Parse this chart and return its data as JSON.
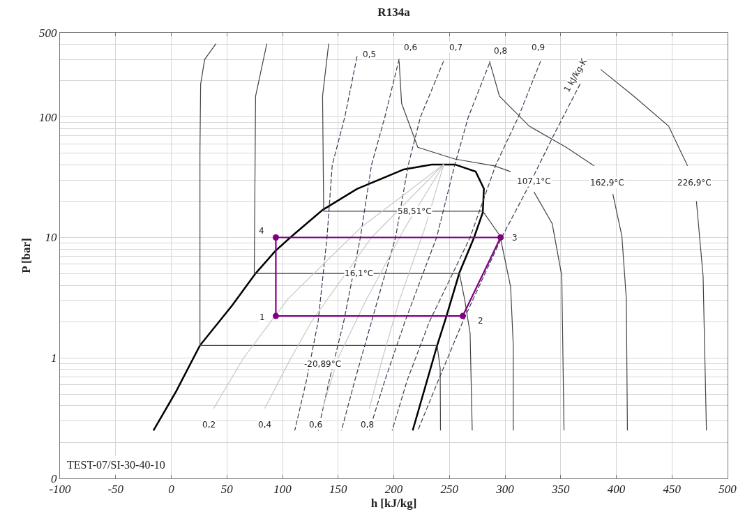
{
  "chart_data": {
    "type": "line",
    "title": "R134a",
    "xlabel": "h [kJ/kg]",
    "ylabel": "P [bar]",
    "log": "y",
    "grid": true,
    "xlim": [
      -100,
      500
    ],
    "xticks": [
      -100,
      -50,
      0,
      50,
      100,
      150,
      200,
      250,
      300,
      350,
      400,
      450,
      500
    ],
    "ylim": [
      0.1,
      500
    ],
    "yticks": [
      {
        "value": 0.1,
        "label": "0"
      },
      1,
      10,
      100,
      500
    ],
    "series": [
      {
        "type": "line",
        "color": "#000000",
        "line_style": "solid",
        "x": [
          -16,
          4.5,
          25.8,
          54.6,
          75.8,
          93.4,
          107,
          136,
          167,
          209,
          234,
          255,
          273.6,
          281,
          280,
          272,
          259,
          247,
          239,
          217
        ],
        "values": [
          0.25,
          0.53,
          1.27,
          2.72,
          5.03,
          7.7,
          10,
          16.9,
          25.3,
          36.7,
          40.3,
          40.3,
          35.2,
          25.4,
          16.1,
          9.9,
          5.1,
          2.17,
          1.27,
          0.25
        ]
      },
      {
        "type": "line",
        "color": "#444444",
        "line_style": "solid",
        "x": [
          40.2,
          30,
          26.4,
          25.8,
          25.8,
          239,
          241.7,
          242
        ],
        "values": [
          406,
          300,
          187,
          50,
          1.27,
          1.27,
          0.82,
          0.25
        ]
      },
      {
        "type": "line",
        "color": "#444444",
        "line_style": "solid",
        "x": [
          85.9,
          75.8,
          74.6,
          259,
          263.6,
          268.6,
          270.5
        ],
        "values": [
          406,
          149,
          5.03,
          5.03,
          3.1,
          1.6,
          0.25
        ]
      },
      {
        "type": "line",
        "color": "#444444",
        "line_style": "solid",
        "x": [
          141.5,
          136,
          137,
          280,
          295.5,
          305,
          307.4,
          307.4
        ],
        "values": [
          406,
          149,
          16.5,
          16.5,
          10.3,
          3.9,
          1.27,
          0.25
        ]
      },
      {
        "type": "line",
        "color": "#444444",
        "line_style": "solid",
        "x": [
          204.8,
          207,
          221.6,
          254.8,
          290.5,
          305,
          315.5,
          326,
          342.4,
          351,
          353
        ],
        "values": [
          291,
          130,
          56,
          44.8,
          39.3,
          35.2,
          null,
          23.9,
          13,
          4.8,
          0.25
        ]
      },
      {
        "type": "line",
        "color": "#444444",
        "line_style": "solid",
        "x": [
          286,
          295,
          321.8,
          355,
          380,
          393,
          396.9,
          405,
          409,
          410
        ],
        "values": [
          291,
          149,
          84,
          56,
          39.3,
          null,
          23,
          10.3,
          3.1,
          0.25
        ]
      },
      {
        "type": "line",
        "color": "#444444",
        "line_style": "solid",
        "x": [
          386,
          415.6,
          447,
          464,
          470,
          472,
          478,
          481
        ],
        "values": [
          248,
          149,
          84,
          39.3,
          null,
          20,
          4.8,
          0.25
        ]
      },
      {
        "type": "line",
        "color": "#3a3a55",
        "line_style": "dashed",
        "x": [
          167,
          156,
          144.7,
          140,
          132,
          121.5,
          111
        ],
        "values": [
          319,
          100,
          40,
          10,
          2.0,
          0.65,
          0.25
        ]
      },
      {
        "type": "line",
        "color": "#3a3a55",
        "line_style": "dashed",
        "x": [
          204.8,
          192,
          180,
          170,
          155,
          142,
          132
        ],
        "values": [
          303,
          100,
          40,
          10,
          2.0,
          0.65,
          0.25
        ]
      },
      {
        "type": "line",
        "color": "#3a3a55",
        "line_style": "dashed",
        "x": [
          244.8,
          224,
          213,
          201.6,
          180,
          165,
          153
        ],
        "values": [
          291,
          100,
          40,
          10,
          2.0,
          0.65,
          0.25
        ]
      },
      {
        "type": "line",
        "color": "#3a3a55",
        "line_style": "dashed",
        "x": [
          286,
          267,
          254.8,
          238.5,
          210,
          192,
          178
        ],
        "values": [
          279,
          100,
          40,
          10,
          2.0,
          0.65,
          0.25
        ]
      },
      {
        "type": "line",
        "color": "#3a3a55",
        "line_style": "dashed",
        "x": [
          332,
          312,
          291.7,
          268.6,
          232,
          212,
          198.5
        ],
        "values": [
          291,
          100,
          40,
          10,
          2.0,
          0.65,
          0.25
        ]
      },
      {
        "type": "line",
        "color": "#3a3a55",
        "line_style": "dashed",
        "x": [
          367.5,
          342.4,
          320,
          297,
          262,
          240,
          221.6
        ],
        "values": [
          188,
          66.8,
          25.3,
          10,
          2.0,
          0.65,
          0.25
        ]
      },
      {
        "type": "line",
        "color": "#c8c8c8",
        "line_style": "solid",
        "x": [
          38,
          65,
          105,
          170,
          245
        ],
        "values": [
          0.38,
          1.0,
          3.1,
          12,
          40.5
        ]
      },
      {
        "type": "line",
        "color": "#c8c8c8",
        "line_style": "solid",
        "x": [
          84,
          105,
          126,
          180,
          245
        ],
        "values": [
          0.38,
          0.9,
          2.0,
          10,
          40.5
        ]
      },
      {
        "type": "line",
        "color": "#c8c8c8",
        "line_style": "solid",
        "x": [
          136,
          150,
          175,
          210,
          245
        ],
        "values": [
          0.38,
          1.0,
          3,
          12,
          40.5
        ]
      },
      {
        "type": "line",
        "color": "#c8c8c8",
        "line_style": "solid",
        "x": [
          178,
          190,
          205,
          228,
          245
        ],
        "values": [
          0.38,
          1.0,
          3,
          12,
          40.5
        ]
      },
      {
        "color": "#800080",
        "line_style": "solid",
        "x": [
          94,
          262,
          296,
          94
        ],
        "values": [
          2.23,
          2.23,
          10,
          10
        ]
      },
      {
        "color": "#800080",
        "line_style": "solid",
        "x": [
          94,
          94
        ],
        "values": [
          10,
          2.23
        ]
      },
      {
        "type": "scatter",
        "color": "#800080",
        "marker": "circle",
        "x": [
          94,
          262,
          296,
          94
        ],
        "values": [
          2.23,
          2.23,
          10,
          10
        ]
      }
    ],
    "annotations": [
      "-20,89°C",
      {
        "text": "16,1°C",
        "x": 168.5,
        "y": 5.03
      },
      {
        "text": "58,51°C",
        "x": 218.5,
        "y": 16.5
      },
      {
        "text": "107,1°C",
        "x": 326,
        "y": 29.3
      },
      "162,9°C",
      "226,9°C",
      {
        "text": "0,5",
        "x": 178,
        "y": 330
      },
      {
        "text": "0,6",
        "x": 215,
        "y": 380
      },
      {
        "text": "0,7",
        "x": 256,
        "y": 380
      },
      {
        "text": "0,8",
        "x": 296,
        "y": 355
      },
      {
        "text": "0,9",
        "x": 330,
        "y": 380
      },
      "1 kJ/kg-K",
      {
        "text": "0,2",
        "x": 34,
        "y": 0.28
      },
      {
        "text": "0,4",
        "x": 84,
        "y": 0.28
      },
      {
        "text": "0,6",
        "x": 130,
        "y": 0.28
      },
      {
        "text": "0,8",
        "x": 176,
        "y": 0.28
      },
      {
        "text": "1",
        "x": 82,
        "y": 2.17
      },
      {
        "text": "2",
        "x": 278,
        "y": 2.03
      },
      {
        "text": "3",
        "x": 309,
        "y": 10
      },
      {
        "text": "4",
        "x": 81,
        "y": 11.3
      },
      "TEST-07/SI-30-40-10"
    ]
  }
}
